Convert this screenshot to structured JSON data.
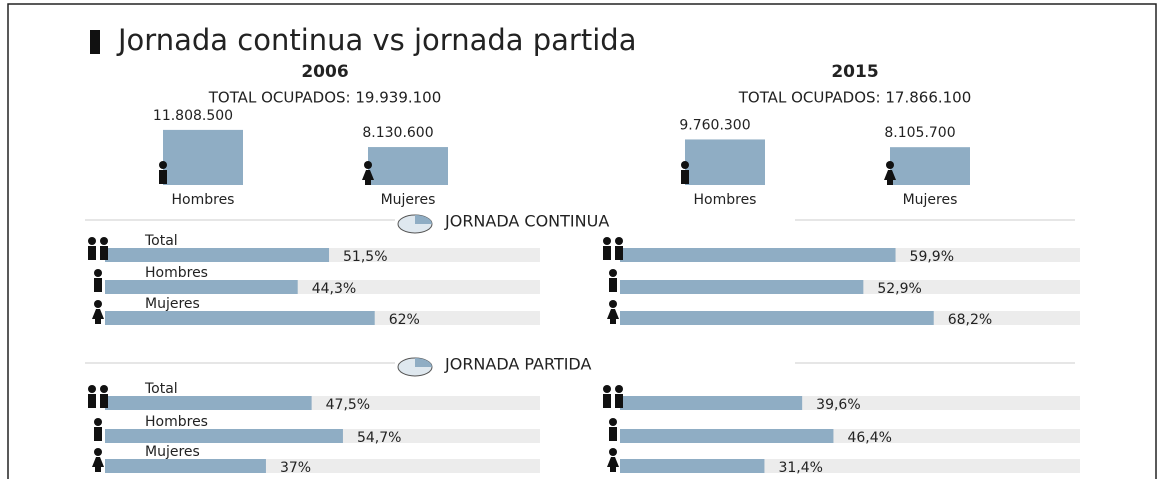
{
  "title": "Jornada continua vs jornada partida",
  "sections": [
    "JORNADA CONTINUA",
    "JORNADA PARTIDA"
  ],
  "chart_data": [
    {
      "type": "bar",
      "title": "2006",
      "subtitle": "TOTAL OCUPADOS: 19.939.100",
      "categories": [
        "Hombres",
        "Mujeres"
      ],
      "values": [
        11808500,
        8130600
      ],
      "value_labels": [
        "11.808.500",
        "8.130.600"
      ],
      "ylim": [
        0,
        12000000
      ],
      "color": "#8fadc4"
    },
    {
      "type": "bar",
      "title": "2015",
      "subtitle": "TOTAL OCUPADOS: 17.866.100",
      "categories": [
        "Hombres",
        "Mujeres"
      ],
      "values": [
        9760300,
        8105700
      ],
      "value_labels": [
        "9.760.300",
        "8.105.700"
      ],
      "ylim": [
        0,
        12000000
      ],
      "color": "#8fadc4"
    },
    {
      "type": "hbar",
      "categories": [
        "Total",
        "Hombres",
        "Mujeres"
      ],
      "values": [
        51.5,
        44.3,
        62
      ],
      "value_labels": [
        "51,5%",
        "44,3%",
        "62%"
      ],
      "xlim": [
        0,
        100
      ],
      "color": "#8fadc4"
    },
    {
      "type": "hbar",
      "categories": [
        null,
        null,
        null
      ],
      "values": [
        59.9,
        52.9,
        68.2
      ],
      "value_labels": [
        "59,9%",
        "52,9%",
        "68,2%"
      ],
      "xlim": [
        0,
        100
      ],
      "color": "#8fadc4"
    },
    {
      "type": "hbar",
      "categories": [
        "Total",
        "Hombres",
        "Mujeres"
      ],
      "values": [
        47.5,
        54.7,
        37
      ],
      "value_labels": [
        "47,5%",
        "54,7%",
        "37%"
      ],
      "xlim": [
        0,
        100
      ],
      "color": "#8fadc4"
    },
    {
      "type": "hbar",
      "categories": [
        null,
        null,
        null
      ],
      "values": [
        39.6,
        46.4,
        31.4
      ],
      "value_labels": [
        "39,6%",
        "46,4%",
        "31,4%"
      ],
      "xlim": [
        0,
        100
      ],
      "color": "#8fadc4"
    }
  ]
}
